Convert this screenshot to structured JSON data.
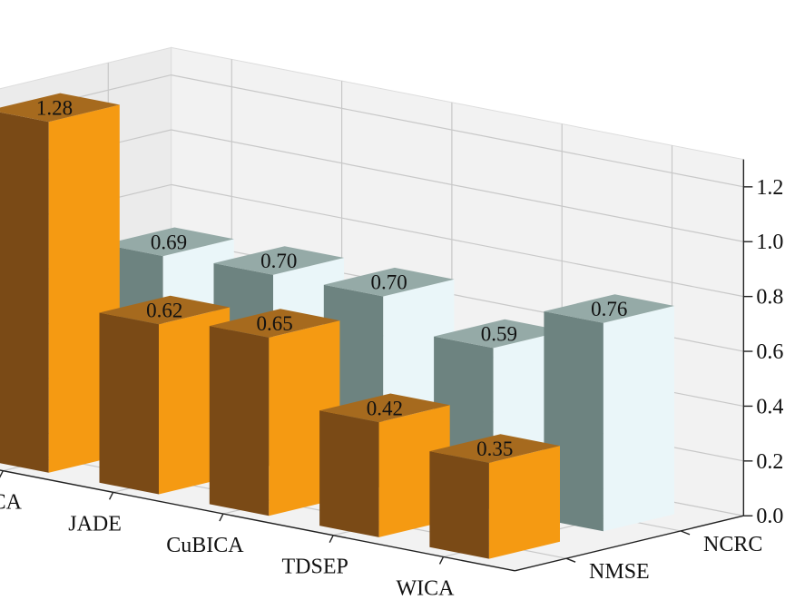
{
  "chart_data": {
    "type": "bar",
    "title": "",
    "categories": [
      "FastICA",
      "JADE",
      "CuBICA",
      "TDSEP",
      "WICA"
    ],
    "series": [
      {
        "name": "NMSE",
        "values": [
          1.28,
          0.62,
          0.65,
          0.42,
          0.35
        ],
        "front_color": "#7a4a16",
        "side_color": "#f59a12",
        "top_color": "#a66a1e"
      },
      {
        "name": "NCRC",
        "values": [
          0.69,
          0.7,
          0.7,
          0.59,
          0.76
        ],
        "front_color": "#6d8380",
        "side_color": "#eaf6f9",
        "top_color": "#95aaa7"
      }
    ],
    "z_ticks": [
      "0.0",
      "0.2",
      "0.4",
      "0.6",
      "0.8",
      "1.0",
      "1.2"
    ],
    "zlim": [
      0,
      1.3
    ],
    "grid": true,
    "projection": "3d"
  }
}
